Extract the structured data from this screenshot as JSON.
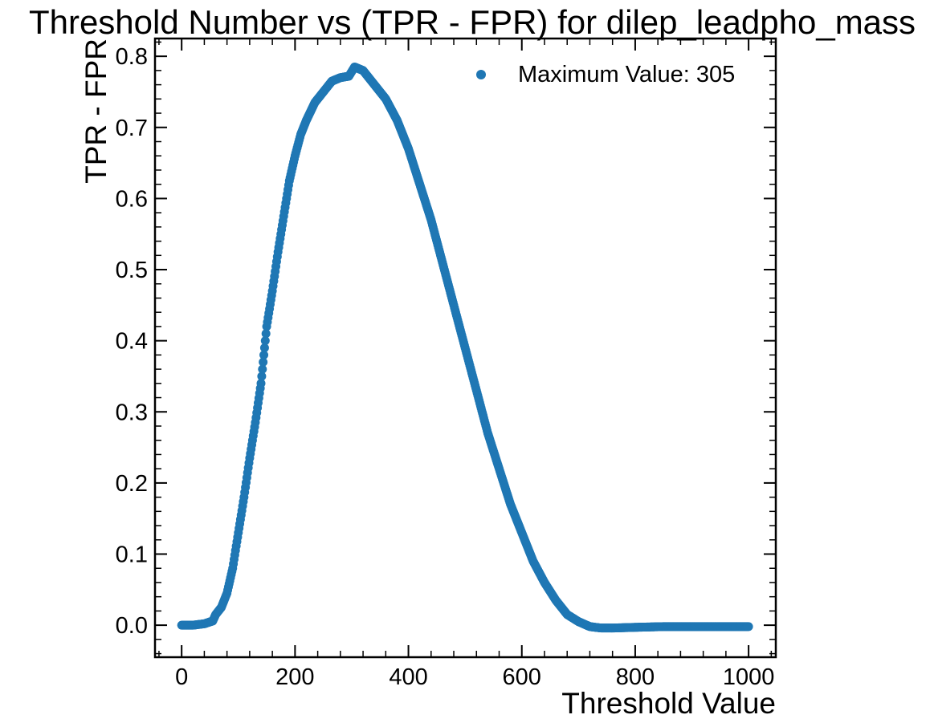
{
  "chart_data": {
    "type": "scatter",
    "title": "Threshold Number vs (TPR - FPR) for dilep_leadpho_mass",
    "xlabel": "Threshold Value",
    "ylabel": "TPR - FPR",
    "xlim": [
      -47,
      1048
    ],
    "ylim": [
      -0.045,
      0.825
    ],
    "xticks": [
      0,
      200,
      400,
      600,
      800,
      1000
    ],
    "xtick_labels": [
      "0",
      "200",
      "400",
      "600",
      "800",
      "1000"
    ],
    "yticks": [
      0.0,
      0.1,
      0.2,
      0.3,
      0.4,
      0.5,
      0.6,
      0.7,
      0.8
    ],
    "ytick_labels": [
      "0.0",
      "0.1",
      "0.2",
      "0.3",
      "0.4",
      "0.5",
      "0.6",
      "0.7",
      "0.8"
    ],
    "grid": false,
    "legend": {
      "placement": "top-right",
      "entries": [
        "Maximum Value:  305"
      ]
    },
    "series": [
      {
        "name": "Maximum Value:  305",
        "color": "#1f77b4",
        "points": [
          [
            0,
            0.0
          ],
          [
            20,
            0.0
          ],
          [
            40,
            0.002
          ],
          [
            55,
            0.006
          ],
          [
            60,
            0.015
          ],
          [
            70,
            0.025
          ],
          [
            80,
            0.045
          ],
          [
            90,
            0.08
          ],
          [
            100,
            0.13
          ],
          [
            110,
            0.18
          ],
          [
            120,
            0.235
          ],
          [
            130,
            0.285
          ],
          [
            140,
            0.34
          ],
          [
            150,
            0.42
          ],
          [
            160,
            0.47
          ],
          [
            170,
            0.525
          ],
          [
            180,
            0.575
          ],
          [
            190,
            0.625
          ],
          [
            200,
            0.66
          ],
          [
            210,
            0.69
          ],
          [
            220,
            0.71
          ],
          [
            235,
            0.735
          ],
          [
            250,
            0.75
          ],
          [
            265,
            0.765
          ],
          [
            280,
            0.77
          ],
          [
            295,
            0.772
          ],
          [
            305,
            0.785
          ],
          [
            320,
            0.78
          ],
          [
            340,
            0.76
          ],
          [
            360,
            0.74
          ],
          [
            380,
            0.71
          ],
          [
            400,
            0.67
          ],
          [
            420,
            0.62
          ],
          [
            440,
            0.57
          ],
          [
            460,
            0.51
          ],
          [
            480,
            0.45
          ],
          [
            500,
            0.39
          ],
          [
            520,
            0.33
          ],
          [
            540,
            0.27
          ],
          [
            560,
            0.22
          ],
          [
            580,
            0.17
          ],
          [
            600,
            0.13
          ],
          [
            620,
            0.09
          ],
          [
            640,
            0.06
          ],
          [
            660,
            0.035
          ],
          [
            680,
            0.015
          ],
          [
            700,
            0.005
          ],
          [
            720,
            -0.002
          ],
          [
            740,
            -0.004
          ],
          [
            760,
            -0.004
          ],
          [
            800,
            -0.003
          ],
          [
            850,
            -0.002
          ],
          [
            900,
            -0.002
          ],
          [
            950,
            -0.002
          ],
          [
            1000,
            -0.002
          ]
        ]
      }
    ]
  }
}
